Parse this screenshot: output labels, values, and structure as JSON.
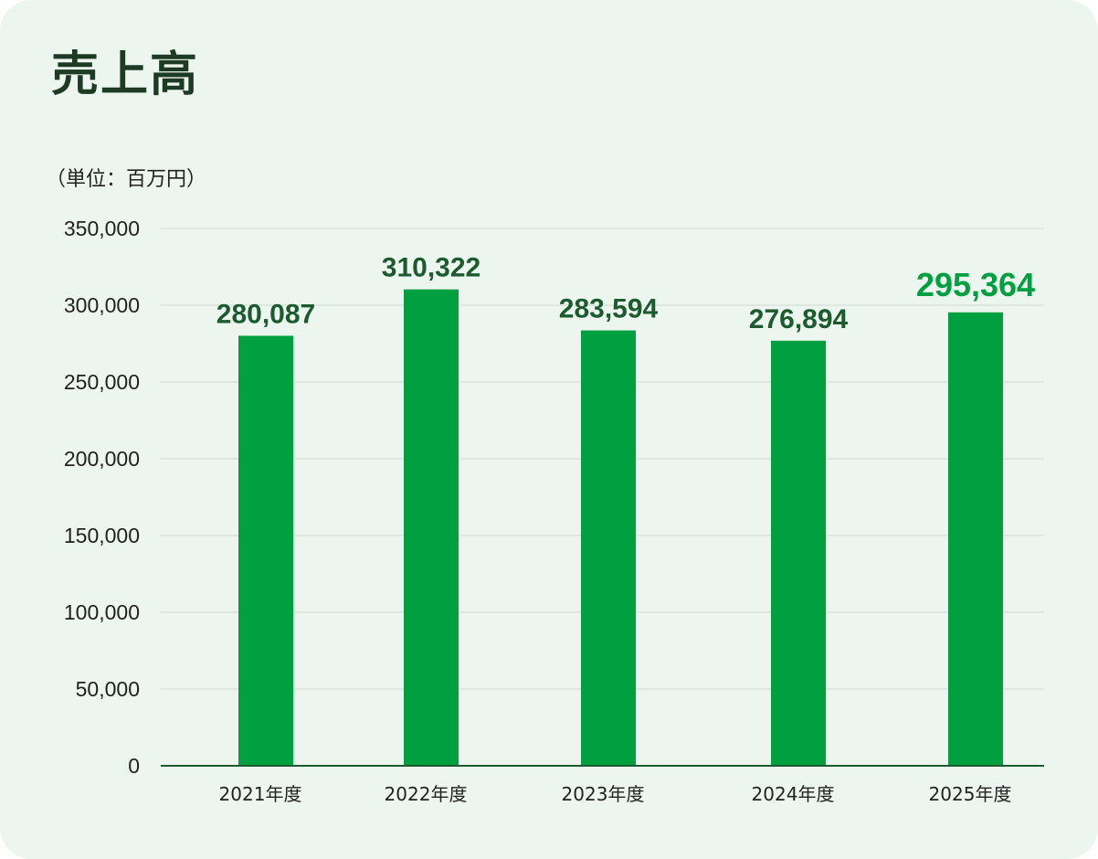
{
  "chart_data": {
    "type": "bar",
    "title": "売上高",
    "unit_label": "（単位：百万円）",
    "categories": [
      "2021年度",
      "2022年度",
      "2023年度",
      "2024年度",
      "2025年度"
    ],
    "values": [
      280087,
      310322,
      283594,
      276894,
      295364
    ],
    "value_labels": [
      "280,087",
      "310,322",
      "283,594",
      "276,894",
      "295,364"
    ],
    "highlight_index": 4,
    "ylim": [
      0,
      350000
    ],
    "yticks": [
      0,
      50000,
      100000,
      150000,
      200000,
      250000,
      300000,
      350000
    ],
    "ytick_labels": [
      "0",
      "50,000",
      "100,000",
      "150,000",
      "200,000",
      "250,000",
      "300,000",
      "350,000"
    ],
    "grid": true,
    "xlabel": "",
    "ylabel": ""
  },
  "colors": {
    "bar": "#00a040",
    "value_label": "#1c5a30",
    "value_label_highlight": "#00a040",
    "baseline": "#1c5a30",
    "grid": "#d7e3d9",
    "background": "#edf6ee"
  }
}
